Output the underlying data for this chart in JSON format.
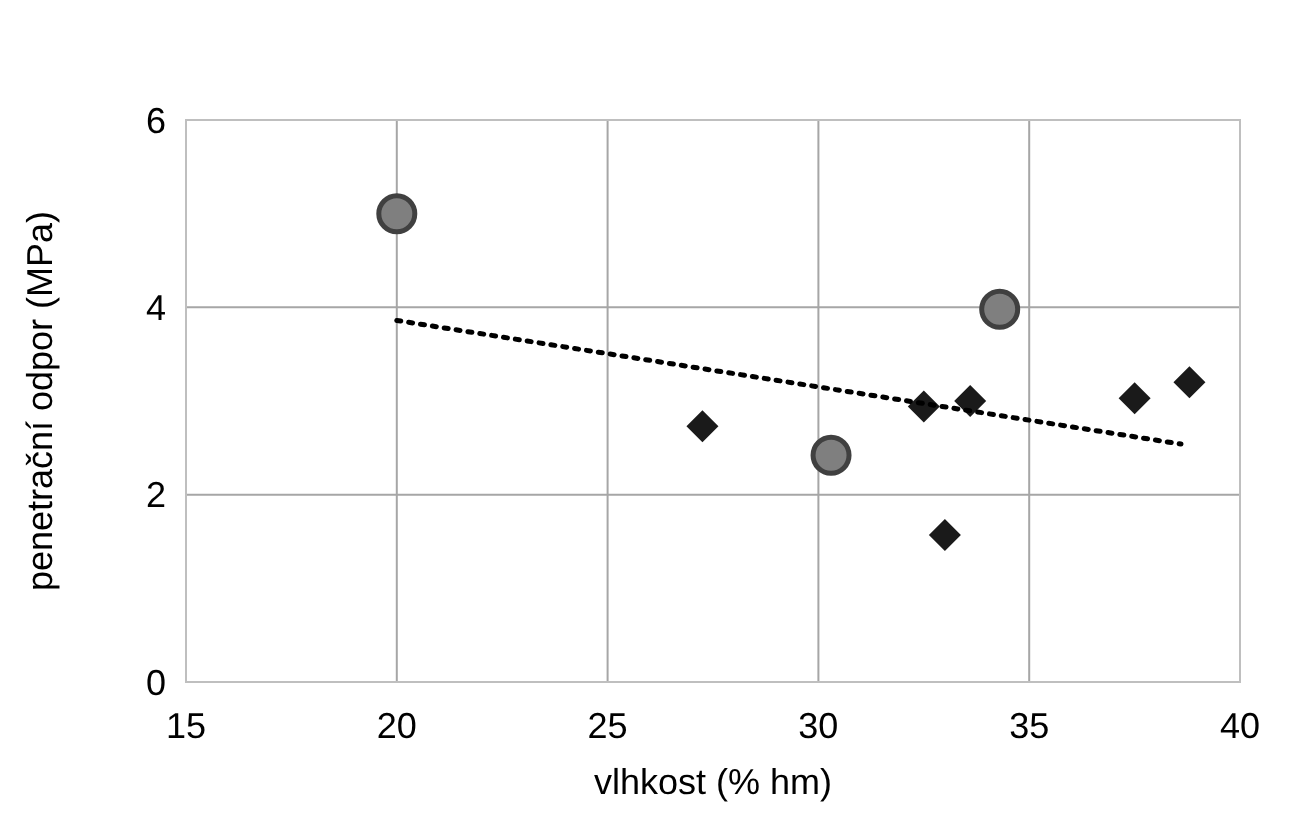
{
  "chart_data": {
    "type": "scatter",
    "xlabel": "vlhkost (% hm)",
    "ylabel": "penetrační odpor (MPa)",
    "xlim": [
      15,
      40
    ],
    "xticks": [
      15,
      20,
      25,
      30,
      35,
      40
    ],
    "ylim": [
      0,
      6
    ],
    "yticks": [
      0,
      2,
      4,
      6
    ],
    "grid": true,
    "series": [
      {
        "marker": "circle",
        "color": "#7f7f7f",
        "x": [
          20,
          30.3,
          34.3
        ],
        "values": [
          5.0,
          2.42,
          3.98
        ]
      },
      {
        "marker": "diamond",
        "color": "#1a1a1a",
        "x": [
          27.25,
          32.5,
          33.6,
          33.0,
          37.5,
          38.8
        ],
        "values": [
          2.73,
          2.94,
          3.0,
          1.57,
          3.03,
          3.2
        ]
      },
      {
        "type": "line",
        "marker": "none",
        "line_style": "dotted",
        "color": "#000000",
        "x": [
          20,
          38.6
        ],
        "values": [
          3.86,
          2.54
        ]
      }
    ]
  }
}
